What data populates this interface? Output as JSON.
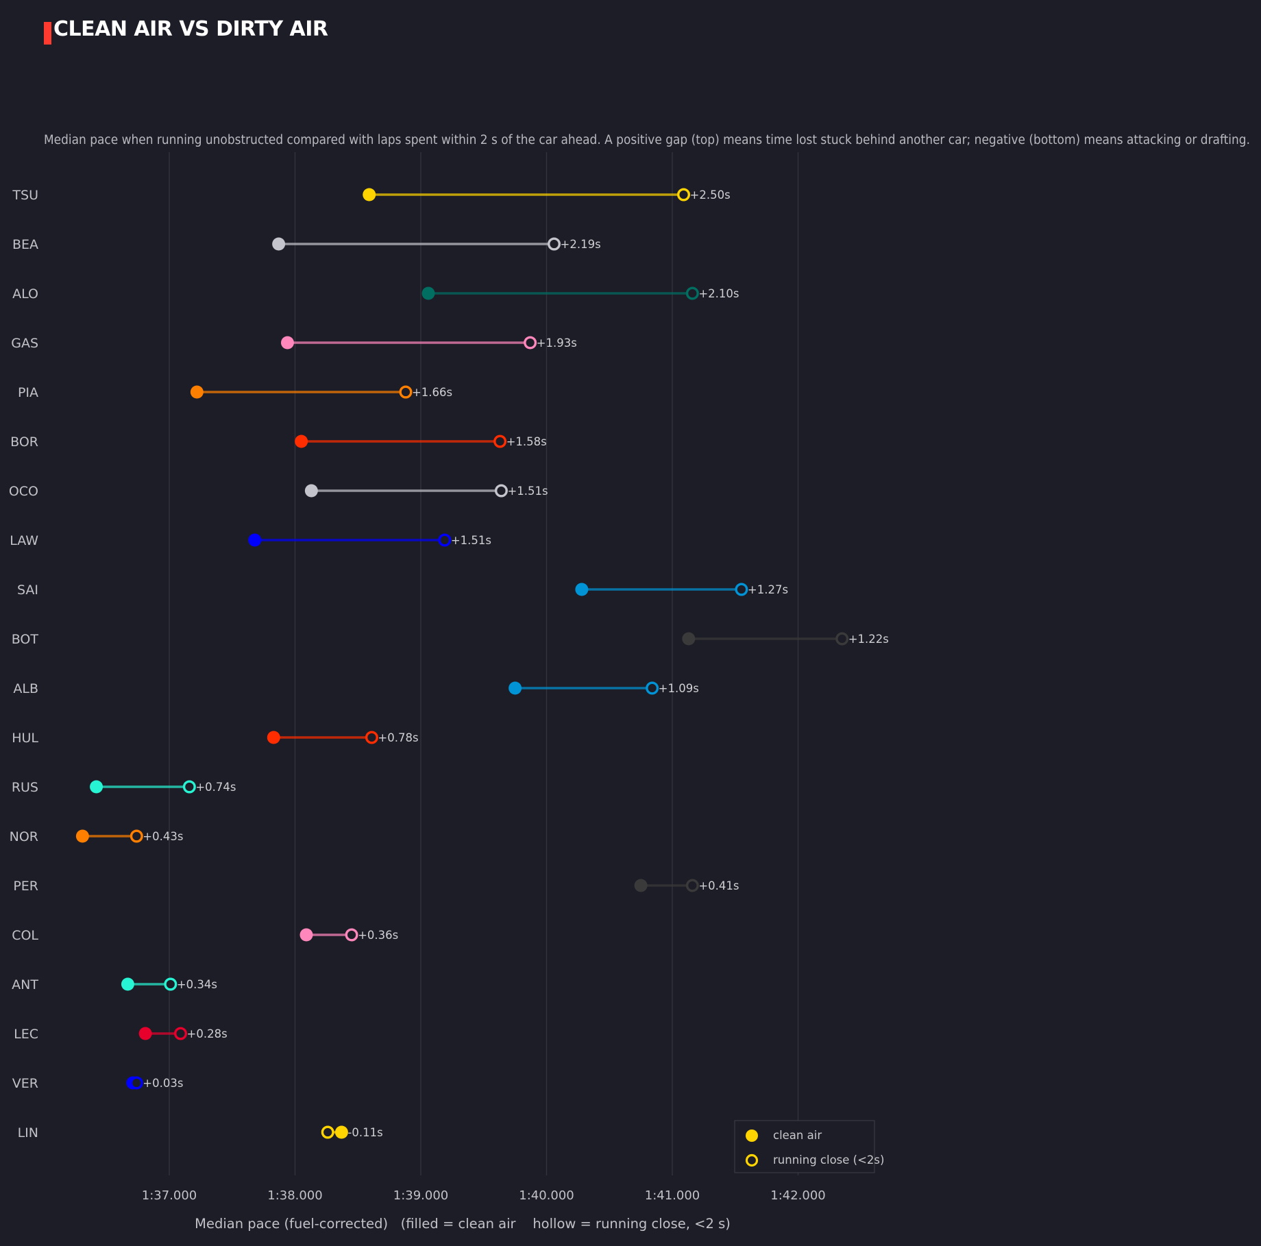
{
  "title": "CLEAN AIR VS DIRTY AIR",
  "subtitle": "Median pace when running unobstructed compared with laps spent within 2 s of the car ahead. A positive gap (top) means time lost stuck behind another car; negative (bottom) means attacking or drafting.",
  "colors": {
    "background": "#1d1d27",
    "accent": "#ff3b30",
    "grid": "#34343f",
    "legend_marker": "#ffd400"
  },
  "chart_data": {
    "type": "dumbbell",
    "title": "CLEAN AIR VS DIRTY AIR",
    "xlabel": "Median pace (fuel-corrected)   (filled = clean air    hollow = running close, <2 s)",
    "ylabel": "",
    "x_unit": "seconds",
    "xlim": [
      96.1,
      102.6
    ],
    "x_ticks": [
      97,
      98,
      99,
      100,
      101,
      102
    ],
    "x_tick_labels": [
      "1:37.000",
      "1:38.000",
      "1:39.000",
      "1:40.000",
      "1:41.000",
      "1:42.000"
    ],
    "grid": "vertical",
    "legend": {
      "placement": "bottom-right",
      "entries": [
        {
          "label": "clean air",
          "marker": "filled"
        },
        {
          "label": "running close (<2s)",
          "marker": "hollow"
        }
      ]
    },
    "drivers": [
      {
        "driver": "TSU",
        "clean_air": 98.59,
        "running_close": 101.09,
        "gap_label": "+2.50s",
        "color": "#ffd400"
      },
      {
        "driver": "BEA",
        "clean_air": 97.87,
        "running_close": 100.06,
        "gap_label": "+2.19s",
        "color": "#c4c4cc"
      },
      {
        "driver": "ALO",
        "clean_air": 99.06,
        "running_close": 101.16,
        "gap_label": "+2.10s",
        "color": "#006f62"
      },
      {
        "driver": "GAS",
        "clean_air": 97.94,
        "running_close": 99.87,
        "gap_label": "+1.93s",
        "color": "#ff87bc"
      },
      {
        "driver": "PIA",
        "clean_air": 97.22,
        "running_close": 98.88,
        "gap_label": "+1.66s",
        "color": "#ff8000"
      },
      {
        "driver": "BOR",
        "clean_air": 98.05,
        "running_close": 99.63,
        "gap_label": "+1.58s",
        "color": "#ff2d00"
      },
      {
        "driver": "OCO",
        "clean_air": 98.13,
        "running_close": 99.64,
        "gap_label": "+1.51s",
        "color": "#c4c4cc"
      },
      {
        "driver": "LAW",
        "clean_air": 97.68,
        "running_close": 99.19,
        "gap_label": "+1.51s",
        "color": "#0000ff"
      },
      {
        "driver": "SAI",
        "clean_air": 100.28,
        "running_close": 101.55,
        "gap_label": "+1.27s",
        "color": "#0093d6"
      },
      {
        "driver": "BOT",
        "clean_air": 101.13,
        "running_close": 102.35,
        "gap_label": "+1.22s",
        "color": "#3a3a3a"
      },
      {
        "driver": "ALB",
        "clean_air": 99.75,
        "running_close": 100.84,
        "gap_label": "+1.09s",
        "color": "#0093d6"
      },
      {
        "driver": "HUL",
        "clean_air": 97.83,
        "running_close": 98.61,
        "gap_label": "+0.78s",
        "color": "#ff2d00"
      },
      {
        "driver": "RUS",
        "clean_air": 96.42,
        "running_close": 97.16,
        "gap_label": "+0.74s",
        "color": "#27f4d2"
      },
      {
        "driver": "NOR",
        "clean_air": 96.31,
        "running_close": 96.74,
        "gap_label": "+0.43s",
        "color": "#ff8000"
      },
      {
        "driver": "PER",
        "clean_air": 100.75,
        "running_close": 101.16,
        "gap_label": "+0.41s",
        "color": "#3a3a3a"
      },
      {
        "driver": "COL",
        "clean_air": 98.09,
        "running_close": 98.45,
        "gap_label": "+0.36s",
        "color": "#ff87bc"
      },
      {
        "driver": "ANT",
        "clean_air": 96.67,
        "running_close": 97.01,
        "gap_label": "+0.34s",
        "color": "#27f4d2"
      },
      {
        "driver": "LEC",
        "clean_air": 96.81,
        "running_close": 97.09,
        "gap_label": "+0.28s",
        "color": "#e8002d"
      },
      {
        "driver": "VER",
        "clean_air": 96.71,
        "running_close": 96.74,
        "gap_label": "+0.03s",
        "color": "#0000ff"
      },
      {
        "driver": "LIN",
        "clean_air": 98.37,
        "running_close": 98.26,
        "gap_label": "-0.11s",
        "color": "#ffd400"
      }
    ]
  }
}
